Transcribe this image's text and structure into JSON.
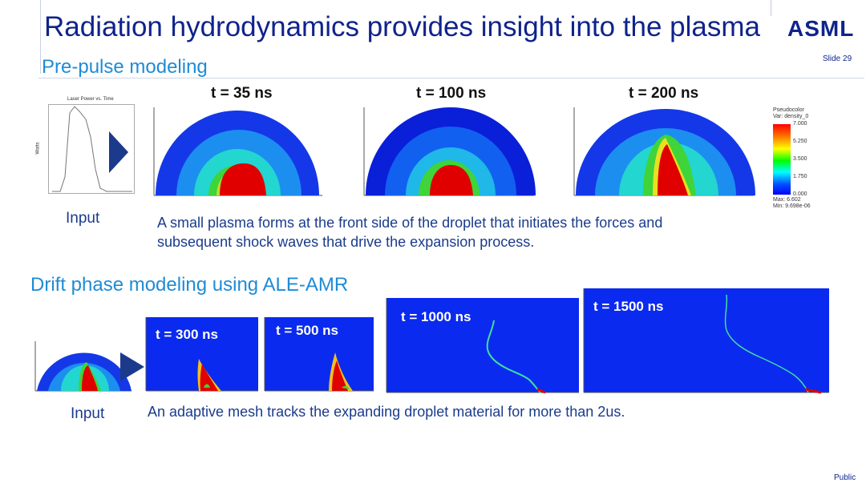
{
  "slide": {
    "title": "Radiation hydrodynamics provides insight into the plasma",
    "logo_text": "ASML",
    "slide_number": "Slide 29",
    "footer_classification": "Public"
  },
  "prepulse": {
    "heading": "Pre-pulse modeling",
    "input_label": "Input",
    "laser_plot_title": "Laser Power vs. Time",
    "laser_plot_ylabel": "Watts",
    "snapshots": [
      {
        "label": "t = 35 ns"
      },
      {
        "label": "t = 100 ns"
      },
      {
        "label": "t = 200 ns"
      }
    ],
    "description_line1": "A small plasma forms at the front side of the droplet that initiates the forces and",
    "description_line2": "subsequent shock waves that drive the expansion process.",
    "legend": {
      "title_line1": "Pseudocolor",
      "title_line2": "Var: density_0",
      "ticks": [
        "7.000",
        "5.250",
        "3.500",
        "1.750",
        "0.000"
      ],
      "max_label": "Max: 6.602",
      "min_label": "Min: 9.698e-06"
    }
  },
  "drift": {
    "heading": "Drift phase modeling using ALE-AMR",
    "input_label": "Input",
    "snapshots": [
      {
        "label": "t = 300 ns"
      },
      {
        "label": "t = 500 ns"
      },
      {
        "label": "t = 1000 ns"
      },
      {
        "label": "t = 1500 ns"
      }
    ],
    "description": "An adaptive mesh tracks the expanding droplet material for more than 2us."
  },
  "colors": {
    "title_blue": "#0f238c",
    "heading_blue": "#1f8bd6",
    "text_blue": "#1a3b8c",
    "arrow_navy": "#1b3a8c",
    "plasma_red": "#e00000",
    "field_blue": "#0a2af0"
  }
}
